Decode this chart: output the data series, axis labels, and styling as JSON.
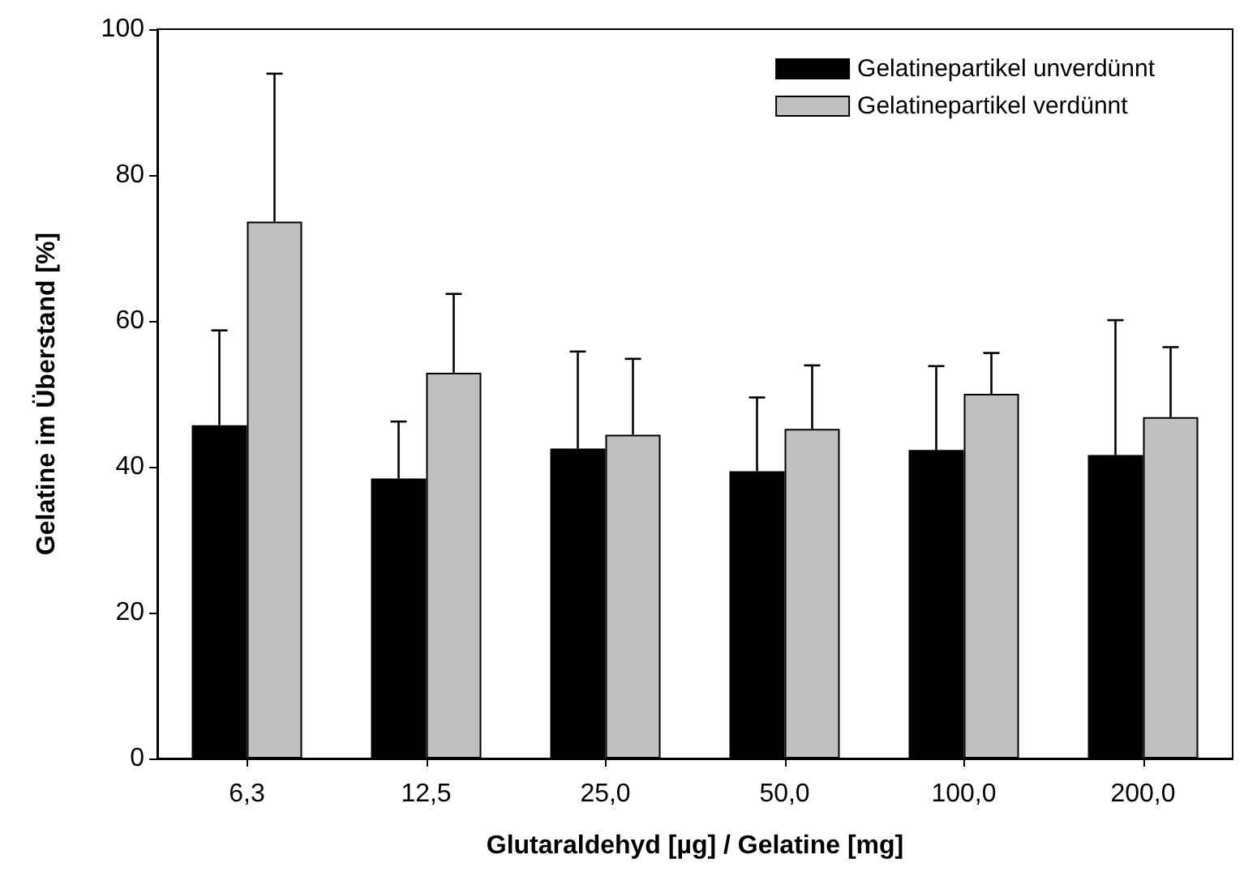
{
  "chart_data": {
    "type": "bar",
    "xlabel": "Glutaraldehyd [µg] / Gelatine [mg]",
    "ylabel": "Gelatine im Überstand [%]",
    "categories": [
      "6,3",
      "12,5",
      "25,0",
      "50,0",
      "100,0",
      "200,0"
    ],
    "series": [
      {
        "name": "Gelatinepartikel unverdünnt",
        "color": "#000000",
        "values": [
          45.7,
          38.4,
          42.5,
          39.4,
          42.3,
          41.6
        ],
        "errors": [
          [
            45.7,
            58.7
          ],
          [
            38.4,
            46.2
          ],
          [
            42.5,
            55.8
          ],
          [
            39.4,
            49.5
          ],
          [
            42.3,
            53.8
          ],
          [
            41.6,
            60.1
          ]
        ]
      },
      {
        "name": "Gelatinepartikel verdünnt",
        "color": "#c0c0c0",
        "values": [
          73.6,
          52.9,
          44.4,
          45.2,
          50.0,
          46.8
        ],
        "errors": [
          [
            73.6,
            93.9
          ],
          [
            52.9,
            63.7
          ],
          [
            44.4,
            54.8
          ],
          [
            45.2,
            53.9
          ],
          [
            50.0,
            55.6
          ],
          [
            46.8,
            56.4
          ]
        ]
      }
    ],
    "ylim": [
      0,
      100
    ],
    "yticks": [
      0,
      20,
      40,
      60,
      80,
      100
    ],
    "grid": false,
    "legend": "top right"
  }
}
